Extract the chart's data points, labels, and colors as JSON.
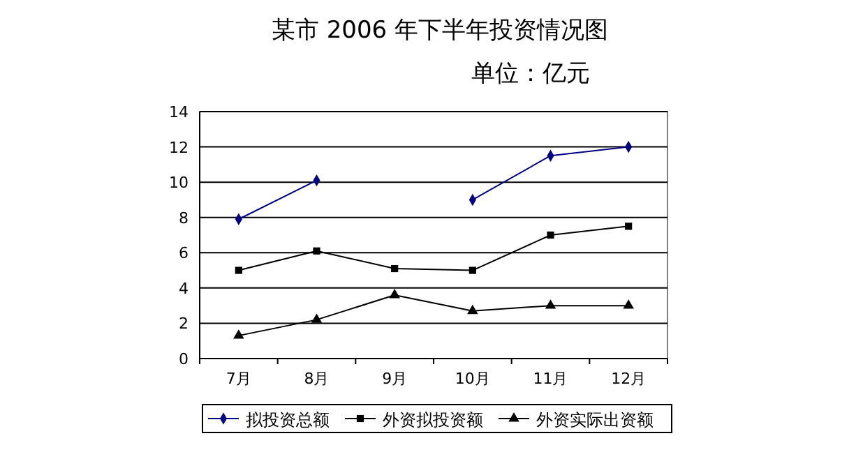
{
  "chart_data": {
    "type": "line",
    "title": "某市 2006 年下半年投资情况图",
    "subtitle": "单位：亿元",
    "categories": [
      "7月",
      "8月",
      "9月",
      "10月",
      "11月",
      "12月"
    ],
    "series": [
      {
        "name": "拟投资总额",
        "color": "#000080",
        "marker": "diamond",
        "values": [
          7.9,
          10.1,
          null,
          9.0,
          11.5,
          12.0
        ]
      },
      {
        "name": "外资拟投资额",
        "color": "#000000",
        "marker": "square",
        "values": [
          5.0,
          6.1,
          5.1,
          5.0,
          7.0,
          7.5
        ]
      },
      {
        "name": "外资实际出资额",
        "color": "#000000",
        "marker": "triangle",
        "values": [
          1.3,
          2.2,
          3.6,
          2.7,
          3.0,
          3.0
        ]
      }
    ],
    "ylim": [
      0,
      14
    ],
    "yticks": [
      0,
      2,
      4,
      6,
      8,
      10,
      12,
      14
    ],
    "grid": "y",
    "legend": "bottom"
  }
}
